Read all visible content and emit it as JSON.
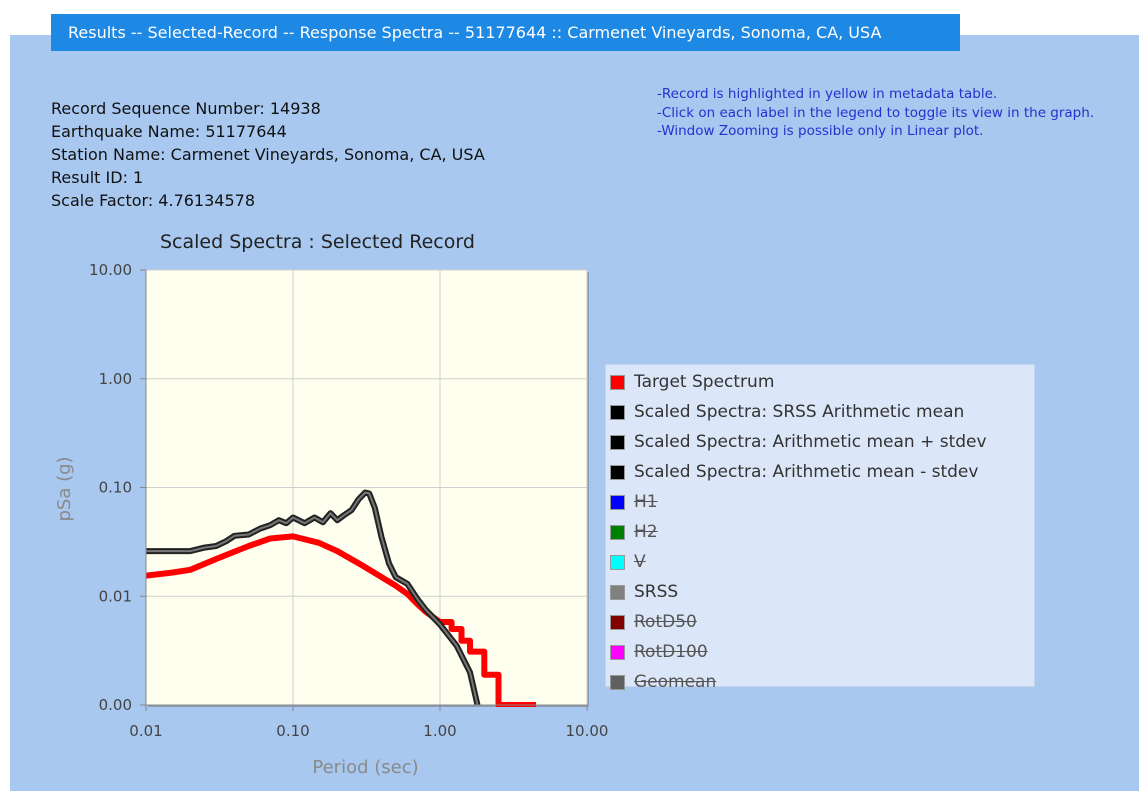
{
  "header": {
    "title": "Results -- Selected-Record -- Response Spectra -- 51177644 :: Carmenet Vineyards, Sonoma, CA, USA"
  },
  "info": {
    "record_seq": "Record Sequence Number: 14938",
    "eq_name": "Earthquake Name: 51177644",
    "station": "Station Name: Carmenet Vineyards, Sonoma, CA, USA",
    "result_id": "Result ID: 1",
    "scale_factor": "Scale Factor: 4.76134578"
  },
  "notes": [
    "-Record is highlighted in yellow in metadata table.",
    "-Click on each label in the legend to toggle its view in the graph.",
    "-Window Zooming is possible only in Linear plot."
  ],
  "chart_data": {
    "type": "line",
    "title": "Scaled Spectra : Selected Record",
    "xlabel": "Period (sec)",
    "ylabel": "pSa (g)",
    "x_scale": "log",
    "y_scale": "log",
    "xlim": [
      0.01,
      10
    ],
    "ylim": [
      0.001,
      10
    ],
    "x_ticks": [
      {
        "value": 0.01,
        "label": "0.01"
      },
      {
        "value": 0.1,
        "label": "0.10"
      },
      {
        "value": 1,
        "label": "1.00"
      },
      {
        "value": 10,
        "label": "10.00"
      }
    ],
    "y_ticks": [
      {
        "value": 0.001,
        "label": "0.00"
      },
      {
        "value": 0.01,
        "label": "0.01"
      },
      {
        "value": 0.1,
        "label": "0.10"
      },
      {
        "value": 1,
        "label": "1.00"
      },
      {
        "value": 10,
        "label": "10.00"
      }
    ],
    "grid": true,
    "legend_position": "right",
    "series": [
      {
        "name": "Target Spectrum",
        "color": "#ff0000",
        "visible": true,
        "width": 6,
        "step": false,
        "points": [
          [
            0.01,
            0.0155
          ],
          [
            0.015,
            0.0165
          ],
          [
            0.02,
            0.0175
          ],
          [
            0.03,
            0.022
          ],
          [
            0.05,
            0.029
          ],
          [
            0.07,
            0.034
          ],
          [
            0.1,
            0.0355
          ],
          [
            0.15,
            0.031
          ],
          [
            0.2,
            0.026
          ],
          [
            0.3,
            0.019
          ],
          [
            0.4,
            0.015
          ],
          [
            0.5,
            0.0125
          ],
          [
            0.6,
            0.0105
          ],
          [
            0.7,
            0.0085
          ],
          [
            0.8,
            0.0072
          ],
          [
            1.0,
            0.0058
          ]
        ]
      },
      {
        "name": "Target Spectrum tail",
        "color": "#ff0000",
        "visible": true,
        "width": 6,
        "step": true,
        "points": [
          [
            1.0,
            0.0058
          ],
          [
            1.2,
            0.005
          ],
          [
            1.4,
            0.0039
          ],
          [
            1.6,
            0.0031
          ],
          [
            2.0,
            0.0019
          ],
          [
            2.5,
            0.001
          ],
          [
            4.5,
            0.001
          ]
        ]
      },
      {
        "name": "Scaled Spectra: SRSS Arithmetic mean",
        "color": "#222222",
        "visible": true,
        "width": 6,
        "step": false,
        "points": [
          [
            0.01,
            0.026
          ],
          [
            0.02,
            0.026
          ],
          [
            0.025,
            0.028
          ],
          [
            0.03,
            0.029
          ],
          [
            0.035,
            0.032
          ],
          [
            0.04,
            0.036
          ],
          [
            0.05,
            0.037
          ],
          [
            0.06,
            0.042
          ],
          [
            0.07,
            0.045
          ],
          [
            0.08,
            0.05
          ],
          [
            0.09,
            0.047
          ],
          [
            0.1,
            0.053
          ],
          [
            0.12,
            0.047
          ],
          [
            0.14,
            0.053
          ],
          [
            0.16,
            0.048
          ],
          [
            0.18,
            0.058
          ],
          [
            0.2,
            0.05
          ],
          [
            0.22,
            0.055
          ],
          [
            0.25,
            0.062
          ],
          [
            0.28,
            0.078
          ],
          [
            0.31,
            0.09
          ],
          [
            0.33,
            0.088
          ],
          [
            0.36,
            0.065
          ],
          [
            0.4,
            0.035
          ],
          [
            0.45,
            0.02
          ],
          [
            0.5,
            0.015
          ],
          [
            0.6,
            0.013
          ],
          [
            0.7,
            0.0095
          ],
          [
            0.8,
            0.0075
          ],
          [
            1.0,
            0.0055
          ],
          [
            1.3,
            0.0035
          ],
          [
            1.6,
            0.002
          ],
          [
            1.8,
            0.001
          ]
        ]
      },
      {
        "name": "SRSS",
        "color": "#777777",
        "visible": true,
        "width": 2,
        "step": false,
        "points": [
          [
            0.01,
            0.026
          ],
          [
            0.02,
            0.026
          ],
          [
            0.025,
            0.028
          ],
          [
            0.03,
            0.029
          ],
          [
            0.035,
            0.032
          ],
          [
            0.04,
            0.036
          ],
          [
            0.05,
            0.037
          ],
          [
            0.06,
            0.042
          ],
          [
            0.07,
            0.045
          ],
          [
            0.08,
            0.05
          ],
          [
            0.09,
            0.047
          ],
          [
            0.1,
            0.053
          ],
          [
            0.12,
            0.047
          ],
          [
            0.14,
            0.053
          ],
          [
            0.16,
            0.048
          ],
          [
            0.18,
            0.058
          ],
          [
            0.2,
            0.05
          ],
          [
            0.22,
            0.055
          ],
          [
            0.25,
            0.062
          ],
          [
            0.28,
            0.078
          ],
          [
            0.31,
            0.09
          ],
          [
            0.33,
            0.088
          ],
          [
            0.36,
            0.065
          ],
          [
            0.4,
            0.035
          ],
          [
            0.45,
            0.02
          ],
          [
            0.5,
            0.015
          ],
          [
            0.6,
            0.013
          ],
          [
            0.7,
            0.0095
          ],
          [
            0.8,
            0.0075
          ],
          [
            1.0,
            0.0055
          ],
          [
            1.3,
            0.0035
          ],
          [
            1.6,
            0.002
          ],
          [
            1.8,
            0.001
          ]
        ]
      }
    ]
  },
  "legend": [
    {
      "label": "Target Spectrum",
      "color": "#ff0000",
      "visible": true
    },
    {
      "label": "Scaled Spectra: SRSS Arithmetic mean",
      "color": "#000000",
      "visible": true
    },
    {
      "label": "Scaled Spectra: Arithmetic mean + stdev",
      "color": "#000000",
      "visible": true
    },
    {
      "label": "Scaled Spectra: Arithmetic mean - stdev",
      "color": "#000000",
      "visible": true
    },
    {
      "label": "H1",
      "color": "#0000ff",
      "visible": false
    },
    {
      "label": "H2",
      "color": "#008000",
      "visible": false
    },
    {
      "label": "V",
      "color": "#00ffff",
      "visible": false
    },
    {
      "label": "SRSS",
      "color": "#808080",
      "visible": true
    },
    {
      "label": "RotD50",
      "color": "#800000",
      "visible": false
    },
    {
      "label": "RotD100",
      "color": "#ff00ff",
      "visible": false
    },
    {
      "label": "Geomean",
      "color": "#606060",
      "visible": false
    }
  ]
}
